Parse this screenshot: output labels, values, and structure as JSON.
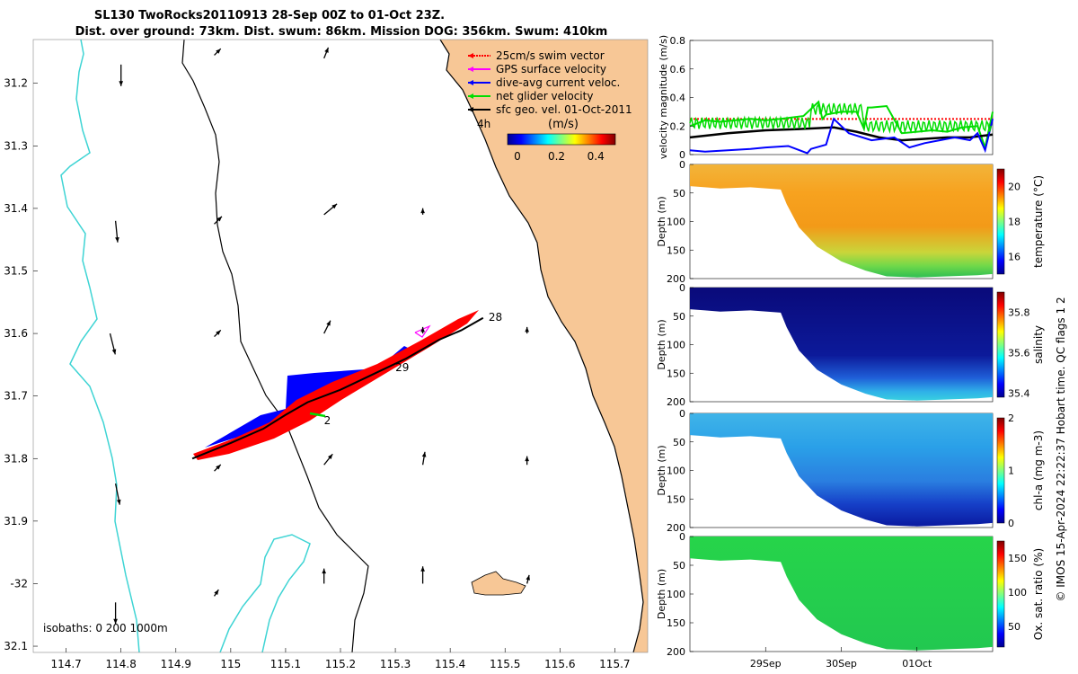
{
  "title_line1": "SL130 TwoRocks20110913 28-Sep 00Z to 01-Oct 23Z.",
  "title_line2": "Dist. over ground: 73km. Dist. swum: 86km. Mission DOG: 356km. Swum: 410km",
  "footer": "© IMOS 15-Apr-2024 22:22:37 Hobart time. QC flags 1  2",
  "colors": {
    "land": "#f7c796",
    "isobath": "#3ed4d4",
    "coast": "#000000",
    "swim": "#ff0000",
    "gps": "#ff00ff",
    "dive": "#0000ff",
    "net": "#00dd00",
    "geo": "#000000",
    "limit": "#ff0000"
  },
  "chart_data": [
    {
      "type": "scatter",
      "name": "track-map",
      "xlim": [
        114.64,
        115.76
      ],
      "ylim": [
        -32.11,
        -31.13
      ],
      "x_ticks": [
        114.7,
        114.8,
        114.9,
        115.0,
        115.1,
        115.2,
        115.3,
        115.4,
        115.5,
        115.6,
        115.7
      ],
      "x_tick_labels": [
        "114.7",
        "114.8",
        "114.9",
        "115",
        "115.1",
        "115.2",
        "115.3",
        "115.4",
        "115.5",
        "115.6",
        "115.7"
      ],
      "y_ticks": [
        -31.2,
        -31.3,
        -31.4,
        -31.5,
        -31.6,
        -31.7,
        -31.8,
        -31.9,
        -32.0,
        -32.1
      ],
      "y_tick_labels": [
        "31.2",
        "31.3",
        "31.4",
        "31.5",
        "31.6",
        "31.7",
        "31.8",
        "31.9",
        "-32",
        "32.1"
      ],
      "legend": [
        {
          "label": "25cm/s swim vector",
          "color": "#ff0000"
        },
        {
          "label": "GPS surface velocity",
          "color": "#ff00ff"
        },
        {
          "label": "dive-avg current veloc.",
          "color": "#0000ff"
        },
        {
          "label": "net glider velocity",
          "color": "#00dd00"
        },
        {
          "label": "sfc geo. vel. 01-Oct-2011",
          "color": "#000000"
        }
      ],
      "legend_extra": "4h",
      "colorbar": {
        "label": "(m/s)",
        "ticks": [
          0,
          0.2,
          0.4
        ],
        "tick_labels": [
          "0",
          "0.2",
          "0.4"
        ],
        "range": [
          -0.05,
          0.5
        ]
      },
      "isobaths_label": "isobaths: 0   200  1000m",
      "day_labels": [
        {
          "text": "28",
          "lon": 115.47,
          "lat": -31.58
        },
        {
          "text": "29",
          "lon": 115.3,
          "lat": -31.66
        },
        {
          "text": "2",
          "lon": 115.17,
          "lat": -31.745
        }
      ],
      "track": [
        [
          114.93,
          -31.8
        ],
        [
          115.0,
          -31.775
        ],
        [
          115.06,
          -31.752
        ],
        [
          115.1,
          -31.73
        ],
        [
          115.14,
          -31.71
        ],
        [
          115.2,
          -31.69
        ],
        [
          115.26,
          -31.665
        ],
        [
          115.32,
          -31.64
        ],
        [
          115.38,
          -31.61
        ],
        [
          115.42,
          -31.595
        ],
        [
          115.46,
          -31.575
        ]
      ],
      "geo_vectors": [
        {
          "lon": 114.8,
          "lat": -31.17,
          "u": 0,
          "v": -1
        },
        {
          "lon": 114.97,
          "lat": -31.155,
          "u": 0.3,
          "v": 0.3
        },
        {
          "lon": 115.17,
          "lat": -31.16,
          "u": 0.2,
          "v": 0.5
        },
        {
          "lon": 114.79,
          "lat": -31.42,
          "u": 0.1,
          "v": -1
        },
        {
          "lon": 114.97,
          "lat": -31.425,
          "u": 0.35,
          "v": 0.35
        },
        {
          "lon": 115.17,
          "lat": -31.41,
          "u": 0.6,
          "v": 0.5
        },
        {
          "lon": 115.35,
          "lat": -31.41,
          "u": 0,
          "v": 0.3
        },
        {
          "lon": 114.78,
          "lat": -31.6,
          "u": 0.25,
          "v": -1
        },
        {
          "lon": 114.97,
          "lat": -31.605,
          "u": 0.3,
          "v": 0.3
        },
        {
          "lon": 115.17,
          "lat": -31.6,
          "u": 0.3,
          "v": 0.6
        },
        {
          "lon": 115.35,
          "lat": -31.6,
          "u": 0,
          "v": 0.3
        },
        {
          "lon": 115.54,
          "lat": -31.6,
          "u": 0,
          "v": 0.3
        },
        {
          "lon": 114.79,
          "lat": -31.84,
          "u": 0.2,
          "v": -1
        },
        {
          "lon": 114.97,
          "lat": -31.82,
          "u": 0.3,
          "v": 0.3
        },
        {
          "lon": 115.17,
          "lat": -31.81,
          "u": 0.4,
          "v": 0.5
        },
        {
          "lon": 115.35,
          "lat": -31.81,
          "u": 0.1,
          "v": 0.6
        },
        {
          "lon": 115.54,
          "lat": -31.81,
          "u": 0,
          "v": 0.4
        },
        {
          "lon": 114.79,
          "lat": -32.03,
          "u": 0,
          "v": -1
        },
        {
          "lon": 114.97,
          "lat": -32.02,
          "u": 0.2,
          "v": 0.3
        },
        {
          "lon": 115.17,
          "lat": -32.0,
          "u": 0,
          "v": 0.7
        },
        {
          "lon": 115.35,
          "lat": -32.0,
          "u": 0,
          "v": 0.8
        },
        {
          "lon": 115.54,
          "lat": -32.0,
          "u": 0.1,
          "v": 0.4
        }
      ]
    },
    {
      "type": "line",
      "name": "velocity-magnitude",
      "ylabel": "velocity magnitude (m/s)",
      "ylim": [
        0,
        0.8
      ],
      "y_ticks": [
        0,
        0.2,
        0.4,
        0.6,
        0.8
      ],
      "xlim": [
        0,
        4
      ],
      "series": [
        {
          "name": "net glider velocity",
          "color": "#00dd00",
          "x": [
            0,
            0.2,
            0.4,
            0.6,
            0.8,
            1.0,
            1.2,
            1.5,
            1.7,
            1.75,
            1.8,
            2.0,
            2.2,
            2.3,
            2.35,
            2.4,
            2.6,
            2.8,
            3.0,
            3.2,
            3.4,
            3.6,
            3.8,
            3.9,
            4.0
          ],
          "y": [
            0.2,
            0.24,
            0.23,
            0.24,
            0.25,
            0.24,
            0.25,
            0.27,
            0.37,
            0.25,
            0.28,
            0.3,
            0.3,
            0.18,
            0.33,
            0.33,
            0.34,
            0.15,
            0.16,
            0.17,
            0.16,
            0.19,
            0.2,
            0.05,
            0.3
          ]
        },
        {
          "name": "net glider (oscillation)",
          "color": "#00dd00",
          "x": [],
          "y": []
        },
        {
          "name": "sfc geo",
          "color": "#000000",
          "x": [
            0,
            0.5,
            1.0,
            1.5,
            1.9,
            2.2,
            2.5,
            2.8,
            3.1,
            3.4,
            3.7,
            4.0
          ],
          "y": [
            0.12,
            0.15,
            0.17,
            0.18,
            0.19,
            0.16,
            0.12,
            0.1,
            0.11,
            0.12,
            0.12,
            0.14
          ]
        },
        {
          "name": "dive-avg",
          "color": "#0000ff",
          "x": [
            0,
            0.2,
            0.5,
            0.8,
            1.0,
            1.3,
            1.55,
            1.6,
            1.8,
            1.9,
            2.1,
            2.4,
            2.7,
            2.9,
            3.1,
            3.3,
            3.5,
            3.7,
            3.8,
            3.9,
            4.0
          ],
          "y": [
            0.03,
            0.02,
            0.03,
            0.04,
            0.05,
            0.06,
            0.01,
            0.04,
            0.07,
            0.25,
            0.15,
            0.1,
            0.12,
            0.05,
            0.08,
            0.1,
            0.12,
            0.1,
            0.15,
            0.03,
            0.25
          ]
        }
      ],
      "reference_line": 0.25
    },
    {
      "type": "heatmap",
      "name": "temperature",
      "ylabel": "Depth (m)",
      "ylim": [
        0,
        200
      ],
      "y_ticks": [
        0,
        50,
        100,
        150,
        200
      ],
      "cbar_label": "temperature (°C)",
      "cbar_ticks": [
        16,
        18,
        20
      ],
      "cbar_range": [
        15,
        21
      ],
      "surface": 20,
      "deep": 15.3
    },
    {
      "type": "heatmap",
      "name": "salinity",
      "ylabel": "Depth (m)",
      "ylim": [
        0,
        200
      ],
      "y_ticks": [
        0,
        50,
        100,
        150,
        200
      ],
      "cbar_label": "salinity",
      "cbar_ticks": [
        35.4,
        35.6,
        35.8
      ],
      "cbar_range": [
        35.38,
        35.9
      ],
      "surface": 35.38,
      "deep": 35.55
    },
    {
      "type": "heatmap",
      "name": "chl-a",
      "ylabel": "Depth (m)",
      "ylim": [
        0,
        200
      ],
      "y_ticks": [
        0,
        50,
        100,
        150,
        200
      ],
      "cbar_label": "chl-a (mg m-3)",
      "cbar_ticks": [
        0,
        1,
        2
      ],
      "cbar_range": [
        0,
        2
      ],
      "surface": 0.9,
      "deep": 0.2
    },
    {
      "type": "heatmap",
      "name": "oxygen",
      "ylabel": "Depth (m)",
      "ylim": [
        0,
        200
      ],
      "y_ticks": [
        0,
        50,
        100,
        150,
        200
      ],
      "cbar_label": "Ox. sat. ratio (%)",
      "cbar_ticks": [
        50,
        100,
        150
      ],
      "cbar_range": [
        20,
        175
      ],
      "surface": 105,
      "deep": 100
    },
    {
      "type": "axis",
      "name": "time-axis",
      "x_ticks": [
        1,
        2,
        3
      ],
      "x_tick_labels": [
        "29Sep",
        "30Sep",
        "01Oct"
      ],
      "xlim": [
        0,
        4
      ]
    }
  ]
}
